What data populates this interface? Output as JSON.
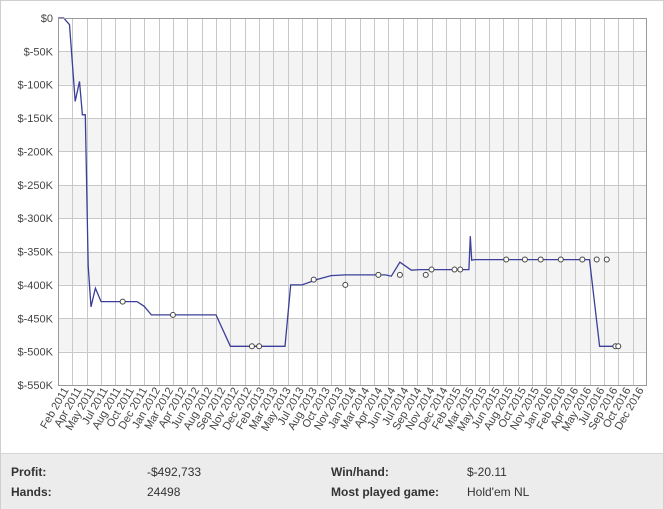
{
  "chart_data": {
    "type": "line",
    "xlabel": "",
    "ylabel": "",
    "ylim": [
      -550000,
      0
    ],
    "yticks": [
      0,
      -50000,
      -100000,
      -150000,
      -200000,
      -250000,
      -300000,
      -350000,
      -400000,
      -450000,
      -500000,
      -550000
    ],
    "ytick_labels": [
      "$0",
      "$-50K",
      "$-100K",
      "$-150K",
      "$-200K",
      "$-250K",
      "$-300K",
      "$-350K",
      "$-400K",
      "$-450K",
      "$-500K",
      "$-550K"
    ],
    "x_categories": [
      "Feb 2011",
      "Apr 2011",
      "May 2011",
      "Jul 2011",
      "Aug 2011",
      "Oct 2011",
      "Dec 2011",
      "Jan 2012",
      "Mar 2012",
      "Apr 2012",
      "Jun 2012",
      "Aug 2012",
      "Sep 2012",
      "Nov 2012",
      "Dec 2012",
      "Feb 2013",
      "Mar 2013",
      "May 2013",
      "Jul 2013",
      "Aug 2013",
      "Oct 2013",
      "Nov 2013",
      "Jan 2014",
      "Mar 2014",
      "Apr 2014",
      "Jun 2014",
      "Jul 2014",
      "Sep 2014",
      "Nov 2014",
      "Dec 2014",
      "Feb 2015",
      "Mar 2015",
      "May 2015",
      "Jun 2015",
      "Aug 2015",
      "Oct 2015",
      "Nov 2015",
      "Jan 2016",
      "Feb 2016",
      "Apr 2016",
      "May 2016",
      "Jul 2016",
      "Sep 2016",
      "Oct 2016",
      "Dec 2016"
    ],
    "grid": true,
    "legend": "none",
    "line_color": "#3b3f99",
    "series": [
      {
        "x": [
          0.0,
          0.4,
          0.8,
          1.2,
          1.5,
          1.7,
          1.9,
          2.1,
          2.3,
          2.6,
          3.0,
          3.3,
          3.7,
          4.0,
          4.2,
          4.5,
          4.8,
          5.5,
          6.0,
          6.5,
          7.0,
          7.4,
          7.7,
          8.0,
          9.0,
          10.0,
          11.0,
          12.0,
          12.7,
          13.0,
          13.5,
          14.0,
          14.3,
          14.8,
          15.3,
          15.8,
          16.2,
          17.0,
          18.0,
          19.0,
          20.0,
          21.0,
          21.5,
          21.8,
          22.2,
          22.5,
          22.8,
          23.2,
          23.8,
          24.6,
          25.2,
          25.6,
          26.0,
          26.5,
          27.0,
          27.6,
          28.0,
          28.6,
          28.7,
          28.8,
          29.0,
          29.3,
          30.0,
          31.0,
          32.0,
          33.0,
          34.0,
          35.0,
          36.0,
          36.6,
          37.0,
          37.7,
          38.0,
          38.4,
          39.0
        ],
        "y": [
          0,
          0,
          -10000,
          -125000,
          -95000,
          -145000,
          -145000,
          -372000,
          -433000,
          -405000,
          -425000,
          -425000,
          -425000,
          -425000,
          -425000,
          -425000,
          -425000,
          -425000,
          -432000,
          -445000,
          -445000,
          -445000,
          -445000,
          -445000,
          -445000,
          -445000,
          -445000,
          -492000,
          -492000,
          -492000,
          -492000,
          -492000,
          -492000,
          -492000,
          -492000,
          -492000,
          -400000,
          -400000,
          -392000,
          -386000,
          -385000,
          -385000,
          -385000,
          -385000,
          -385000,
          -385000,
          -385000,
          -387000,
          -366000,
          -378000,
          -377000,
          -377000,
          -377000,
          -377000,
          -377000,
          -377000,
          -377000,
          -377000,
          -327000,
          -363000,
          -362000,
          -362000,
          -362000,
          -362000,
          -362000,
          -362000,
          -362000,
          -362000,
          -362000,
          -362000,
          -362000,
          -492000,
          -492000,
          -492000,
          -492000
        ],
        "markers_x": [
          4.5,
          8.0,
          13.5,
          14.0,
          17.8,
          20.0,
          22.3,
          23.8,
          25.6,
          26.0,
          27.6,
          28.0,
          31.2,
          32.5,
          33.6,
          35.0,
          36.5,
          37.5,
          38.2,
          38.8,
          39.0
        ],
        "markers_y": [
          -425000,
          -445000,
          -492000,
          -492000,
          -392000,
          -400000,
          -385000,
          -385000,
          -385000,
          -377000,
          -377000,
          -377000,
          -362000,
          -362000,
          -362000,
          -362000,
          -362000,
          -362000,
          -362000,
          -492000,
          -492000
        ]
      }
    ]
  },
  "stats": {
    "profit_label": "Profit:",
    "profit_value": "-$492,733",
    "hands_label": "Hands:",
    "hands_value": "24498",
    "winhand_label": "Win/hand:",
    "winhand_value": "$-20.11",
    "game_label": "Most played game:",
    "game_value": "Hold'em NL"
  }
}
